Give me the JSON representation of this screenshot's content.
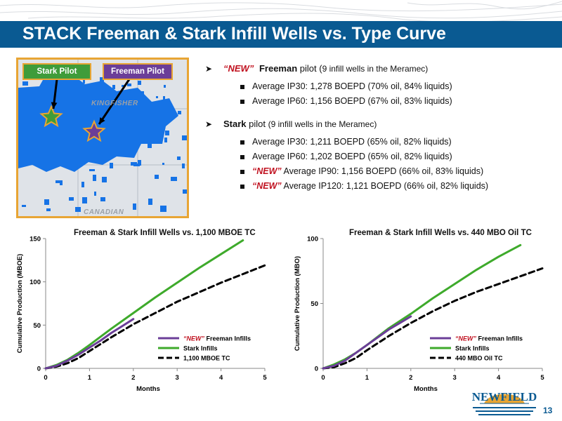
{
  "slide": {
    "title": "STACK Freeman & Stark Infill Wells vs. Type Curve",
    "page_number": "13",
    "logo_text": "NEWFIELD",
    "accent_color": "#0a5a92"
  },
  "map": {
    "stark_label": "Stark Pilot",
    "freeman_label": "Freeman Pilot",
    "county_1": "KINGFISHER",
    "county_2": "CANADIAN",
    "stark_color": "#3f9c3a",
    "freeman_color": "#6b3e98",
    "acreage_color": "#1673e6"
  },
  "bullets": {
    "freeman": {
      "new": "“NEW”",
      "name": "Freeman",
      "suffix_a": " pilot (",
      "suffix_b": "9 infill wells in the Meramec)",
      "items": [
        "Average IP30: 1,278 BOEPD (70% oil, 84% liquids)",
        "Average IP60: 1,156 BOEPD (67% oil, 83% liquids)"
      ]
    },
    "stark": {
      "name": "Stark",
      "suffix_a": " pilot ",
      "suffix_b": "(9 infill wells in the Meramec)",
      "items": [
        "Average IP30: 1,211 BOEPD (65% oil, 82% liquids)",
        "Average IP60: 1,202 BOEPD (65% oil, 82% liquids)"
      ],
      "new_items": [
        {
          "tag": "“NEW”",
          "text": " Average IP90: 1,156 BOEPD (66% oil, 83% liquids)"
        },
        {
          "tag": "“NEW”",
          "text": " Average IP120: 1,121 BOEPD (66% oil, 82% liquids)"
        }
      ]
    }
  },
  "chart_data": [
    {
      "type": "line",
      "title": "Freeman & Stark Infill Wells vs. 1,100 MBOE TC",
      "xlabel": "Months",
      "ylabel": "Cumulative Production (MBOE)",
      "xlim": [
        0,
        5
      ],
      "ylim": [
        0,
        150
      ],
      "xticks": [
        "0",
        "1",
        "2",
        "3",
        "4",
        "5"
      ],
      "yticks": [
        "0",
        "50",
        "100",
        "150"
      ],
      "legend_position": "bottom-right",
      "series": [
        {
          "name": "“NEW” Freeman Infills",
          "new_tag": "“NEW”",
          "label_rest": " Freeman Infills",
          "color": "#6b3e98",
          "dash": false,
          "x": [
            0,
            0.25,
            0.5,
            0.75,
            1,
            1.25,
            1.5,
            1.75,
            2
          ],
          "y": [
            0,
            3,
            9,
            16,
            24,
            32,
            41,
            49,
            57
          ]
        },
        {
          "name": "Stark Infills",
          "color": "#3eaa2b",
          "dash": false,
          "x": [
            0,
            0.25,
            0.5,
            0.75,
            1,
            1.5,
            2,
            2.5,
            3,
            3.5,
            4,
            4.5
          ],
          "y": [
            0,
            4,
            10,
            18,
            27,
            46,
            64,
            82,
            99,
            116,
            132,
            148
          ]
        },
        {
          "name": "1,100 MBOE TC",
          "color": "#000000",
          "dash": true,
          "x": [
            0,
            0.25,
            0.5,
            0.75,
            1,
            1.5,
            2,
            2.5,
            3,
            3.5,
            4,
            4.5,
            5
          ],
          "y": [
            0,
            2,
            6,
            12,
            20,
            36,
            51,
            64,
            77,
            88,
            99,
            109,
            119
          ]
        }
      ]
    },
    {
      "type": "line",
      "title": "Freeman & Stark Infill Wells vs. 440 MBO Oil TC",
      "xlabel": "Months",
      "ylabel": "Cumulative Production (MBO)",
      "xlim": [
        0,
        5
      ],
      "ylim": [
        0,
        100
      ],
      "xticks": [
        "0",
        "1",
        "2",
        "3",
        "4",
        "5"
      ],
      "yticks": [
        "0",
        "50",
        "100"
      ],
      "legend_position": "bottom-right",
      "series": [
        {
          "name": "“NEW” Freeman Infills",
          "new_tag": "“NEW”",
          "label_rest": " Freeman Infills",
          "color": "#6b3e98",
          "dash": false,
          "x": [
            0,
            0.25,
            0.5,
            0.75,
            1,
            1.25,
            1.5,
            1.75,
            2
          ],
          "y": [
            0,
            2,
            6,
            12,
            18,
            24,
            30,
            35,
            40
          ]
        },
        {
          "name": "Stark Infills",
          "color": "#3eaa2b",
          "dash": false,
          "x": [
            0,
            0.25,
            0.5,
            0.75,
            1,
            1.5,
            2,
            2.5,
            3,
            3.5,
            4,
            4.5
          ],
          "y": [
            0,
            3,
            7,
            12,
            18,
            31,
            42,
            54,
            65,
            76,
            86,
            95
          ]
        },
        {
          "name": "440 MBO Oil TC",
          "color": "#000000",
          "dash": true,
          "x": [
            0,
            0.25,
            0.5,
            0.75,
            1,
            1.5,
            2,
            2.5,
            3,
            3.5,
            4,
            4.5,
            5
          ],
          "y": [
            0,
            1,
            4,
            8,
            14,
            25,
            35,
            44,
            52,
            59,
            65,
            71,
            77
          ]
        }
      ]
    }
  ]
}
